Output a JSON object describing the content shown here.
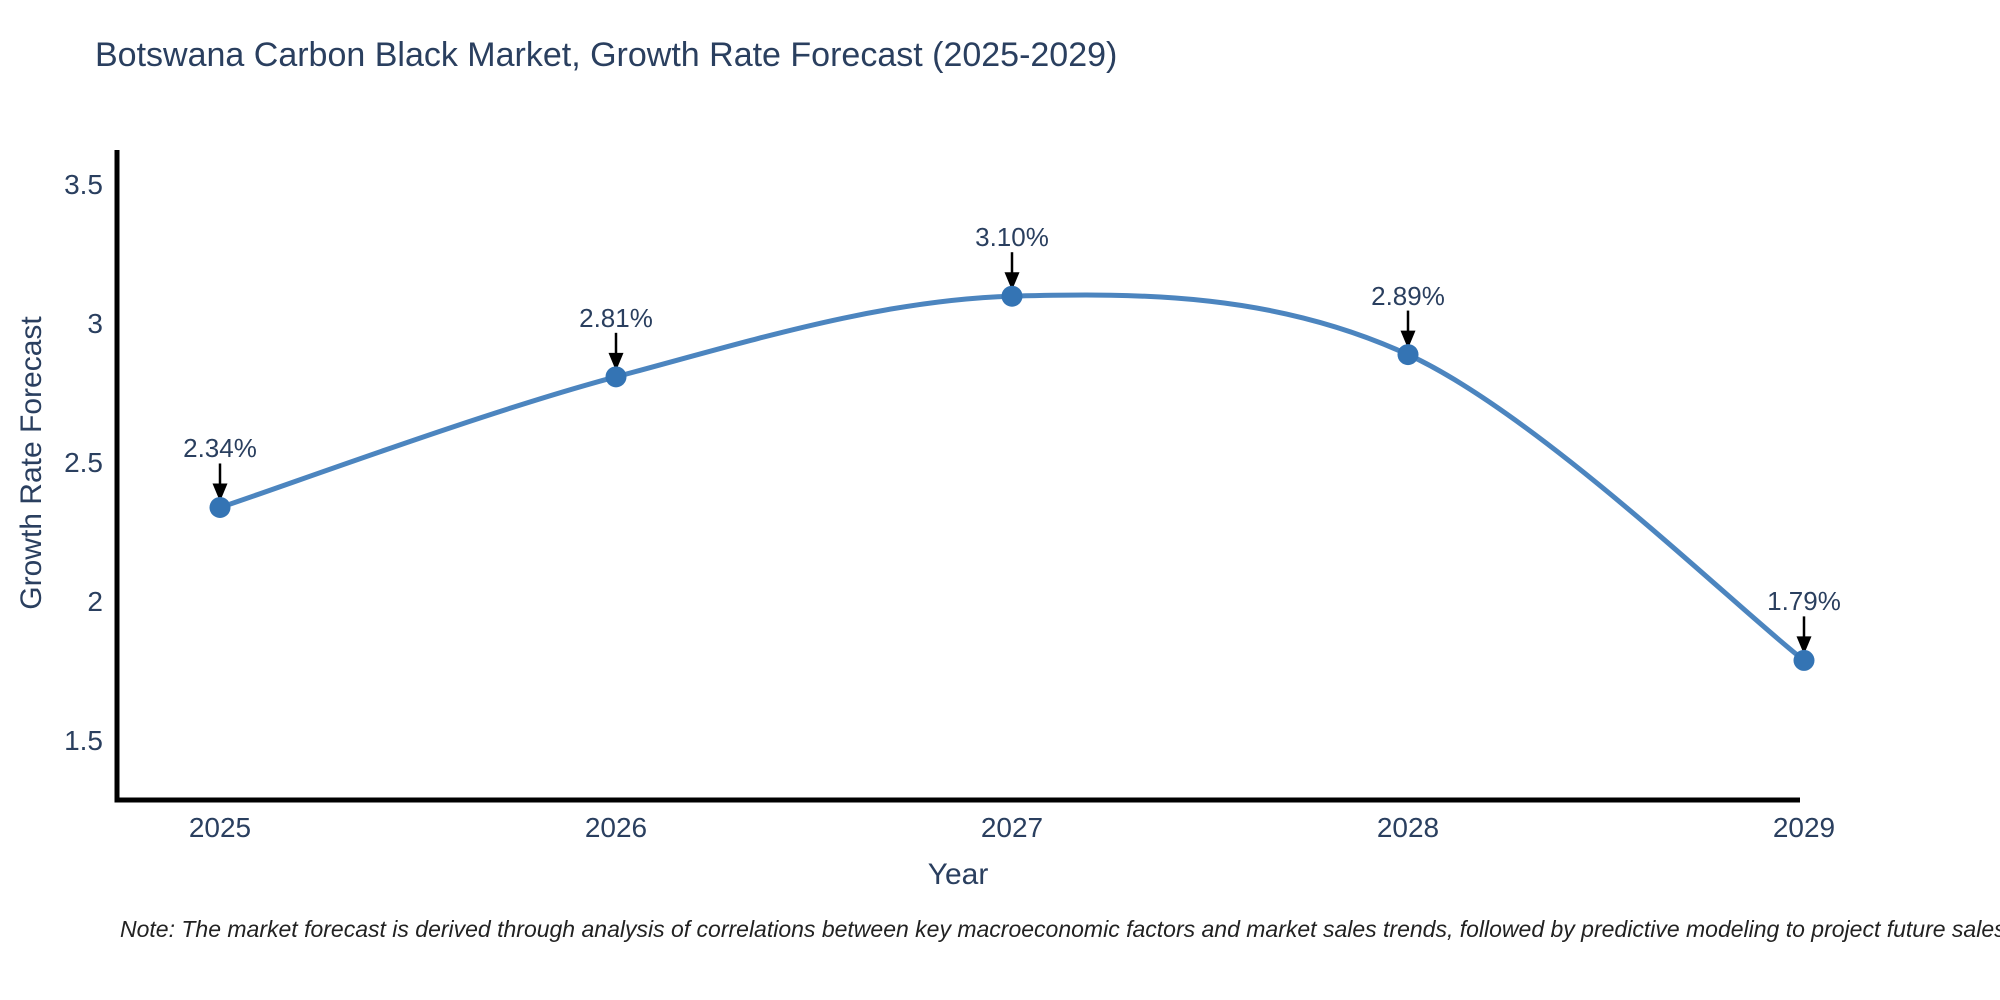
{
  "title": "Botswana Carbon Black Market, Growth Rate Forecast (2025-2029)",
  "note": "Note: The market forecast is derived through analysis of correlations between key macroeconomic factors and market sales trends, followed by predictive modeling to project future sales",
  "colors": {
    "line": "#4c85bf",
    "marker": "#3474b4",
    "axis": "#000000",
    "text": "#2a3f5f",
    "annotation_arrow": "#000000",
    "background": "#ffffff"
  },
  "chart_data": {
    "type": "line",
    "line_shape": "spline",
    "title": "Botswana Carbon Black Market, Growth Rate Forecast (2025-2029)",
    "x_labels": [
      "2025",
      "2026",
      "2027",
      "2028",
      "2029"
    ],
    "series": [
      {
        "name": "Growth Rate Forecast",
        "values": [
          2.34,
          2.81,
          3.1,
          2.89,
          1.79
        ]
      }
    ],
    "point_labels": [
      "2.34%",
      "2.81%",
      "3.10%",
      "2.89%",
      "1.79%"
    ],
    "xlabel": "Year",
    "ylabel": "Growth Rate Forecast",
    "yticks": [
      3.5,
      3,
      2.5,
      2,
      1.5
    ],
    "ytick_labels": [
      "3.5",
      "3",
      "2.5",
      "2",
      "1.5"
    ],
    "ylim": [
      1.29,
      3.72
    ],
    "grid": false,
    "legend": "none",
    "markers": true,
    "annotations": "value-labels-with-down-arrows"
  }
}
